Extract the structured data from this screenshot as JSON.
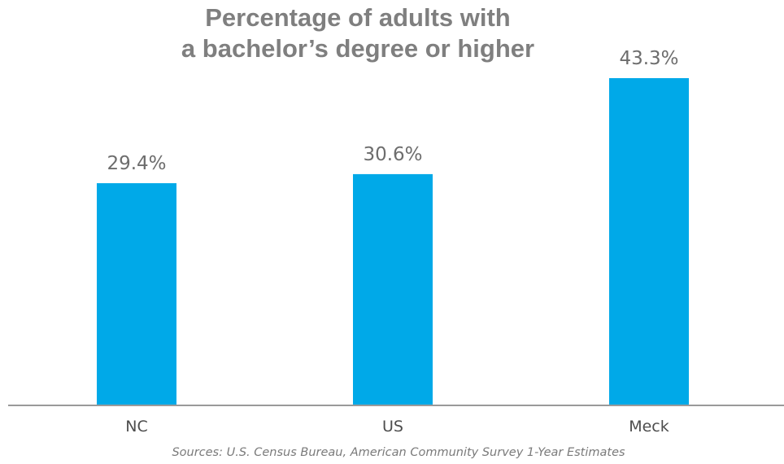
{
  "chart_data": {
    "type": "bar",
    "title": [
      "Percentage of adults with",
      "a bachelor’s degree or higher"
    ],
    "categories": [
      "NC",
      "US",
      "Meck"
    ],
    "values": [
      29.4,
      30.6,
      43.3
    ],
    "value_labels": [
      "29.4%",
      "30.6%",
      "43.3%"
    ],
    "ylim": [
      0,
      45
    ],
    "grid": false,
    "legend": "none",
    "source": "Sources: U.S. Census Bureau, American Community Survey 1-Year Estimates"
  },
  "colors": {
    "bar": "#00a9e8",
    "axis": "#9a9a9a"
  }
}
